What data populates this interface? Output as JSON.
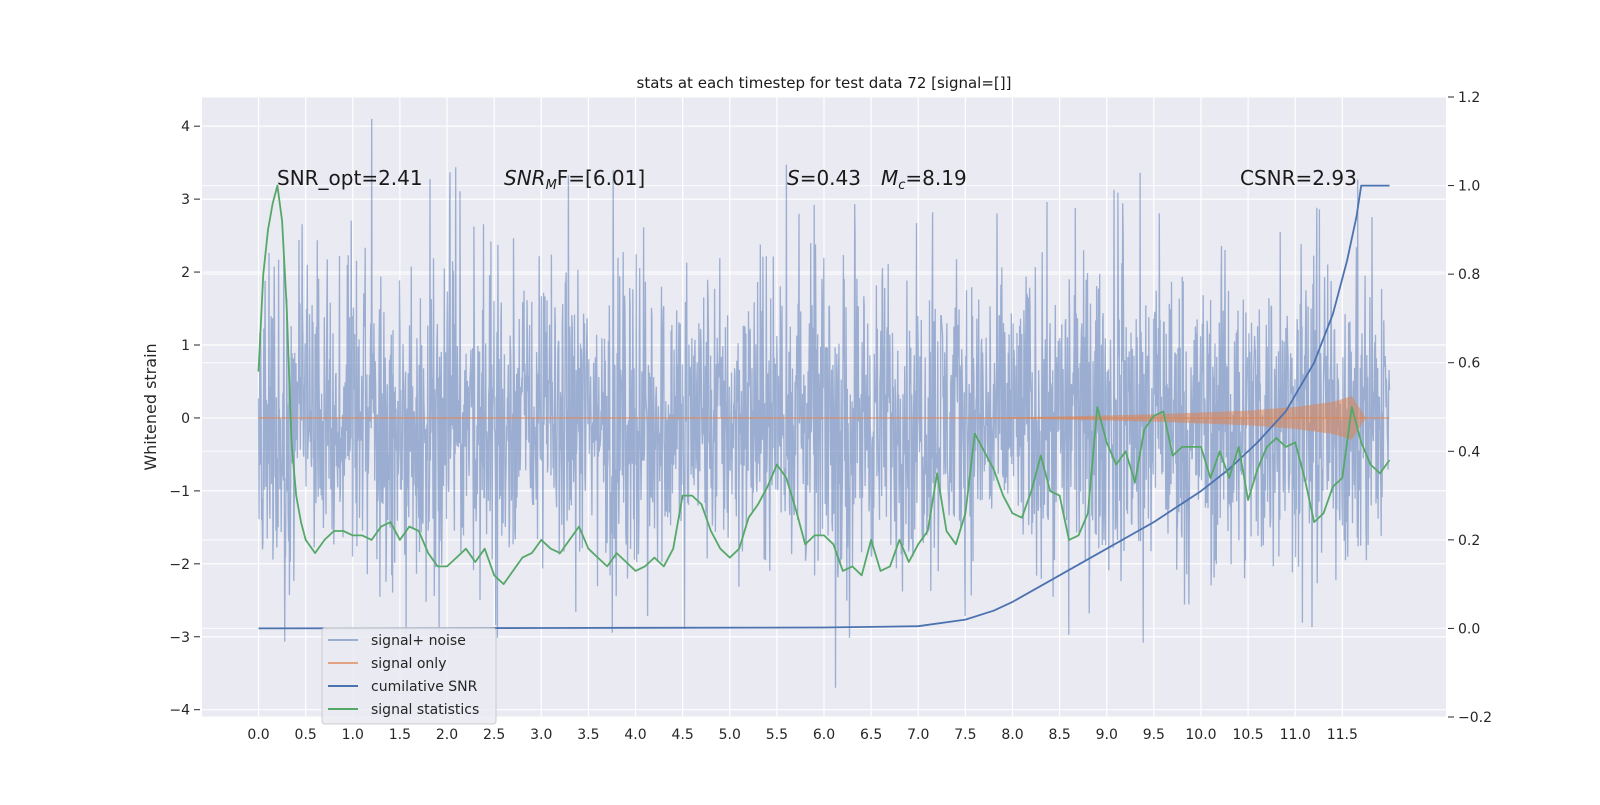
{
  "chart_data": {
    "type": "line",
    "title": "stats at each timestep for test data 72 [signal=[]]",
    "ylabel": "Whitened strain",
    "x_ticks": [
      "0.0",
      "0.5",
      "1.0",
      "1.5",
      "2.0",
      "2.5",
      "3.0",
      "3.5",
      "4.0",
      "4.5",
      "5.0",
      "5.5",
      "6.0",
      "6.5",
      "7.0",
      "7.5",
      "8.0",
      "8.5",
      "9.0",
      "9.5",
      "10.0",
      "10.5",
      "11.0",
      "11.5"
    ],
    "xlim": [
      -0.6,
      12.6
    ],
    "ylim_left": [
      -4.1,
      4.4
    ],
    "ylim_right": [
      -0.2,
      1.2
    ],
    "y_ticks_left": [
      "−4",
      "−3",
      "−2",
      "−1",
      "0",
      "1",
      "2",
      "3",
      "4"
    ],
    "y_ticks_right": [
      "−0.2",
      "0.0",
      "0.2",
      "0.4",
      "0.6",
      "0.8",
      "1.0",
      "1.2"
    ],
    "grid": true,
    "legend_placement": "lower-left",
    "annotations": {
      "snr_opt": "SNR_opt=2.41",
      "snr_mf_main": "SNR",
      "snr_mf_sub": "M",
      "snr_mf_rest": "F=[6.01]",
      "s_main": "S",
      "s_rest": "=0.43",
      "mc_main": "M",
      "mc_sub": "c",
      "mc_rest": "=8.19",
      "csnr": "CSNR=2.93"
    },
    "series": [
      {
        "name": "signal+ noise",
        "axis": "left",
        "color": "#4c72b0",
        "opacity": 0.5,
        "x_range": [
          0.0,
          12.0
        ],
        "band_typical": [
          -1.65,
          1.95
        ],
        "spike_high_typical": 3.3,
        "spike_low_typical": -2.9,
        "max_value": 4.1,
        "min_value": -3.7
      },
      {
        "name": "signal only",
        "axis": "left",
        "color": "#dd8452",
        "x": [
          0.0,
          7.5,
          8.5,
          9.5,
          10.5,
          11.0,
          11.4,
          11.6,
          11.75,
          12.0
        ],
        "amplitude": [
          0.0,
          0.0,
          0.02,
          0.05,
          0.1,
          0.15,
          0.22,
          0.3,
          0.0,
          0.0
        ]
      },
      {
        "name": "cumilative SNR",
        "axis": "right",
        "color": "#4c72b0",
        "x": [
          0.0,
          3.0,
          6.0,
          7.0,
          7.5,
          7.8,
          8.0,
          8.5,
          9.0,
          9.5,
          10.0,
          10.3,
          10.6,
          10.9,
          11.2,
          11.4,
          11.55,
          11.65,
          11.7,
          12.0
        ],
        "values": [
          0.0,
          0.001,
          0.002,
          0.005,
          0.02,
          0.04,
          0.06,
          0.12,
          0.18,
          0.24,
          0.31,
          0.36,
          0.42,
          0.49,
          0.6,
          0.71,
          0.83,
          0.93,
          1.0,
          1.0
        ]
      },
      {
        "name": "signal statistics",
        "axis": "right",
        "color": "#55a868",
        "x": [
          0.0,
          0.05,
          0.1,
          0.15,
          0.2,
          0.25,
          0.3,
          0.35,
          0.4,
          0.45,
          0.5,
          0.6,
          0.7,
          0.8,
          0.9,
          1.0,
          1.1,
          1.2,
          1.3,
          1.4,
          1.5,
          1.6,
          1.7,
          1.8,
          1.9,
          2.0,
          2.1,
          2.2,
          2.3,
          2.4,
          2.5,
          2.6,
          2.7,
          2.8,
          2.9,
          3.0,
          3.1,
          3.2,
          3.3,
          3.4,
          3.5,
          3.6,
          3.7,
          3.8,
          3.9,
          4.0,
          4.1,
          4.2,
          4.3,
          4.4,
          4.5,
          4.6,
          4.7,
          4.8,
          4.9,
          5.0,
          5.1,
          5.2,
          5.3,
          5.4,
          5.5,
          5.6,
          5.7,
          5.8,
          5.9,
          6.0,
          6.1,
          6.2,
          6.3,
          6.4,
          6.5,
          6.6,
          6.7,
          6.8,
          6.9,
          7.0,
          7.1,
          7.2,
          7.3,
          7.4,
          7.5,
          7.6,
          7.7,
          7.8,
          7.9,
          8.0,
          8.1,
          8.2,
          8.3,
          8.4,
          8.5,
          8.6,
          8.7,
          8.8,
          8.9,
          9.0,
          9.1,
          9.2,
          9.3,
          9.4,
          9.5,
          9.6,
          9.7,
          9.8,
          9.9,
          10.0,
          10.1,
          10.2,
          10.3,
          10.4,
          10.5,
          10.6,
          10.7,
          10.8,
          10.9,
          11.0,
          11.1,
          11.2,
          11.3,
          11.4,
          11.5,
          11.6,
          11.7,
          11.8,
          11.9,
          12.0
        ],
        "values": [
          0.58,
          0.8,
          0.9,
          0.96,
          1.0,
          0.92,
          0.72,
          0.42,
          0.3,
          0.24,
          0.2,
          0.17,
          0.2,
          0.22,
          0.22,
          0.21,
          0.21,
          0.2,
          0.23,
          0.24,
          0.2,
          0.23,
          0.22,
          0.17,
          0.14,
          0.14,
          0.16,
          0.18,
          0.15,
          0.18,
          0.12,
          0.1,
          0.13,
          0.16,
          0.17,
          0.2,
          0.18,
          0.17,
          0.2,
          0.23,
          0.18,
          0.16,
          0.14,
          0.17,
          0.15,
          0.13,
          0.14,
          0.16,
          0.14,
          0.18,
          0.3,
          0.3,
          0.28,
          0.22,
          0.18,
          0.16,
          0.18,
          0.25,
          0.28,
          0.32,
          0.37,
          0.34,
          0.27,
          0.19,
          0.21,
          0.21,
          0.19,
          0.13,
          0.14,
          0.12,
          0.2,
          0.13,
          0.14,
          0.2,
          0.15,
          0.19,
          0.22,
          0.35,
          0.22,
          0.19,
          0.26,
          0.44,
          0.4,
          0.36,
          0.3,
          0.26,
          0.25,
          0.31,
          0.39,
          0.31,
          0.3,
          0.2,
          0.21,
          0.26,
          0.5,
          0.42,
          0.37,
          0.4,
          0.33,
          0.45,
          0.48,
          0.49,
          0.39,
          0.41,
          0.41,
          0.41,
          0.34,
          0.4,
          0.34,
          0.41,
          0.29,
          0.36,
          0.41,
          0.43,
          0.41,
          0.42,
          0.34,
          0.24,
          0.26,
          0.32,
          0.34,
          0.5,
          0.42,
          0.37,
          0.35,
          0.38
        ]
      }
    ],
    "style": {
      "axes_bg": "#eaeaf2",
      "grid_color": "#ffffff",
      "text_color": "#262626"
    }
  }
}
